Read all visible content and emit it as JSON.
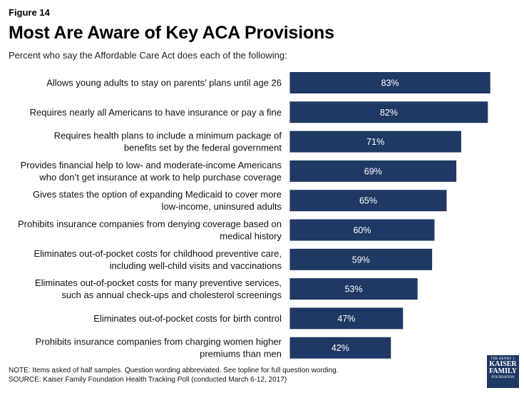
{
  "figure_label": "Figure 14",
  "title": "Most Are Aware of Key ACA Provisions",
  "subtitle": "Percent who say the Affordable Care Act does each of the following:",
  "colors": {
    "bar": "#1f3864",
    "bar_border": "#ffffff",
    "bar_text": "#ffffff"
  },
  "chart_data": {
    "type": "bar",
    "orientation": "horizontal",
    "categories": [
      [
        "Allows young adults to stay on parents’ plans until age 26"
      ],
      [
        "Requires nearly all Americans to have insurance or pay a fine"
      ],
      [
        "Requires health plans to include a minimum package of",
        "benefits set by the federal government"
      ],
      [
        "Provides financial help to low- and moderate-income Americans",
        "who don’t get insurance at work to help purchase coverage"
      ],
      [
        "Gives states the option of expanding Medicaid to cover more",
        "low-income, uninsured adults"
      ],
      [
        "Prohibits insurance companies from denying coverage based on",
        "medical history"
      ],
      [
        "Eliminates out-of-pocket costs for childhood preventive care,",
        "including well-child visits and vaccinations"
      ],
      [
        "Eliminates out-of-pocket costs for many preventive services,",
        "such as annual check-ups and cholesterol screenings"
      ],
      [
        "Eliminates out-of-pocket costs for birth control"
      ],
      [
        "Prohibits insurance companies from charging women higher",
        "premiums than men"
      ]
    ],
    "values": [
      83,
      82,
      71,
      69,
      65,
      60,
      59,
      53,
      47,
      42
    ],
    "value_labels": [
      "83%",
      "82%",
      "71%",
      "69%",
      "65%",
      "60%",
      "59%",
      "53%",
      "47%",
      "42%"
    ],
    "xlim": [
      0,
      100
    ],
    "grid": false,
    "legend": "none"
  },
  "note": "NOTE: Items asked of half samples. Question wording abbreviated. See topline for full question wording.",
  "source": "SOURCE: Kaiser Family Foundation Health Tracking Poll (conducted March 6-12, 2017)",
  "logo": {
    "line1": "THE HENRY J.",
    "line2": "KAISER",
    "line3": "FAMILY",
    "line4": "FOUNDATION"
  }
}
